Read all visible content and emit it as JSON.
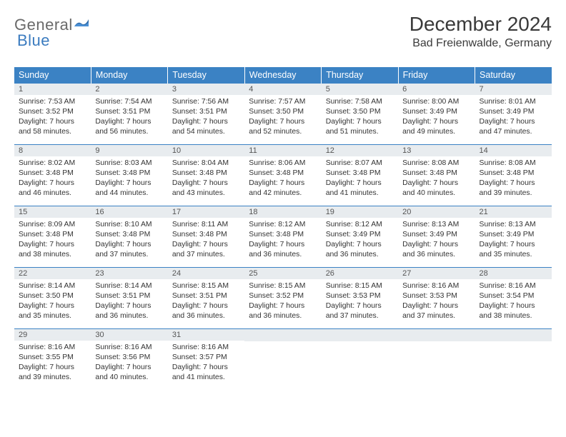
{
  "logo": {
    "part1": "General",
    "part2": "Blue"
  },
  "title": "December 2024",
  "location": "Bad Freienwalde, Germany",
  "colors": {
    "header_bg": "#3b82c4",
    "header_text": "#ffffff",
    "band_bg": "#e8ecef",
    "border": "#3b82c4",
    "logo_gray": "#6a6a6a",
    "logo_blue": "#3b7bbf"
  },
  "day_names": [
    "Sunday",
    "Monday",
    "Tuesday",
    "Wednesday",
    "Thursday",
    "Friday",
    "Saturday"
  ],
  "weeks": [
    [
      {
        "n": "1",
        "sr": "Sunrise: 7:53 AM",
        "ss": "Sunset: 3:52 PM",
        "dl1": "Daylight: 7 hours",
        "dl2": "and 58 minutes."
      },
      {
        "n": "2",
        "sr": "Sunrise: 7:54 AM",
        "ss": "Sunset: 3:51 PM",
        "dl1": "Daylight: 7 hours",
        "dl2": "and 56 minutes."
      },
      {
        "n": "3",
        "sr": "Sunrise: 7:56 AM",
        "ss": "Sunset: 3:51 PM",
        "dl1": "Daylight: 7 hours",
        "dl2": "and 54 minutes."
      },
      {
        "n": "4",
        "sr": "Sunrise: 7:57 AM",
        "ss": "Sunset: 3:50 PM",
        "dl1": "Daylight: 7 hours",
        "dl2": "and 52 minutes."
      },
      {
        "n": "5",
        "sr": "Sunrise: 7:58 AM",
        "ss": "Sunset: 3:50 PM",
        "dl1": "Daylight: 7 hours",
        "dl2": "and 51 minutes."
      },
      {
        "n": "6",
        "sr": "Sunrise: 8:00 AM",
        "ss": "Sunset: 3:49 PM",
        "dl1": "Daylight: 7 hours",
        "dl2": "and 49 minutes."
      },
      {
        "n": "7",
        "sr": "Sunrise: 8:01 AM",
        "ss": "Sunset: 3:49 PM",
        "dl1": "Daylight: 7 hours",
        "dl2": "and 47 minutes."
      }
    ],
    [
      {
        "n": "8",
        "sr": "Sunrise: 8:02 AM",
        "ss": "Sunset: 3:48 PM",
        "dl1": "Daylight: 7 hours",
        "dl2": "and 46 minutes."
      },
      {
        "n": "9",
        "sr": "Sunrise: 8:03 AM",
        "ss": "Sunset: 3:48 PM",
        "dl1": "Daylight: 7 hours",
        "dl2": "and 44 minutes."
      },
      {
        "n": "10",
        "sr": "Sunrise: 8:04 AM",
        "ss": "Sunset: 3:48 PM",
        "dl1": "Daylight: 7 hours",
        "dl2": "and 43 minutes."
      },
      {
        "n": "11",
        "sr": "Sunrise: 8:06 AM",
        "ss": "Sunset: 3:48 PM",
        "dl1": "Daylight: 7 hours",
        "dl2": "and 42 minutes."
      },
      {
        "n": "12",
        "sr": "Sunrise: 8:07 AM",
        "ss": "Sunset: 3:48 PM",
        "dl1": "Daylight: 7 hours",
        "dl2": "and 41 minutes."
      },
      {
        "n": "13",
        "sr": "Sunrise: 8:08 AM",
        "ss": "Sunset: 3:48 PM",
        "dl1": "Daylight: 7 hours",
        "dl2": "and 40 minutes."
      },
      {
        "n": "14",
        "sr": "Sunrise: 8:08 AM",
        "ss": "Sunset: 3:48 PM",
        "dl1": "Daylight: 7 hours",
        "dl2": "and 39 minutes."
      }
    ],
    [
      {
        "n": "15",
        "sr": "Sunrise: 8:09 AM",
        "ss": "Sunset: 3:48 PM",
        "dl1": "Daylight: 7 hours",
        "dl2": "and 38 minutes."
      },
      {
        "n": "16",
        "sr": "Sunrise: 8:10 AM",
        "ss": "Sunset: 3:48 PM",
        "dl1": "Daylight: 7 hours",
        "dl2": "and 37 minutes."
      },
      {
        "n": "17",
        "sr": "Sunrise: 8:11 AM",
        "ss": "Sunset: 3:48 PM",
        "dl1": "Daylight: 7 hours",
        "dl2": "and 37 minutes."
      },
      {
        "n": "18",
        "sr": "Sunrise: 8:12 AM",
        "ss": "Sunset: 3:48 PM",
        "dl1": "Daylight: 7 hours",
        "dl2": "and 36 minutes."
      },
      {
        "n": "19",
        "sr": "Sunrise: 8:12 AM",
        "ss": "Sunset: 3:49 PM",
        "dl1": "Daylight: 7 hours",
        "dl2": "and 36 minutes."
      },
      {
        "n": "20",
        "sr": "Sunrise: 8:13 AM",
        "ss": "Sunset: 3:49 PM",
        "dl1": "Daylight: 7 hours",
        "dl2": "and 36 minutes."
      },
      {
        "n": "21",
        "sr": "Sunrise: 8:13 AM",
        "ss": "Sunset: 3:49 PM",
        "dl1": "Daylight: 7 hours",
        "dl2": "and 35 minutes."
      }
    ],
    [
      {
        "n": "22",
        "sr": "Sunrise: 8:14 AM",
        "ss": "Sunset: 3:50 PM",
        "dl1": "Daylight: 7 hours",
        "dl2": "and 35 minutes."
      },
      {
        "n": "23",
        "sr": "Sunrise: 8:14 AM",
        "ss": "Sunset: 3:51 PM",
        "dl1": "Daylight: 7 hours",
        "dl2": "and 36 minutes."
      },
      {
        "n": "24",
        "sr": "Sunrise: 8:15 AM",
        "ss": "Sunset: 3:51 PM",
        "dl1": "Daylight: 7 hours",
        "dl2": "and 36 minutes."
      },
      {
        "n": "25",
        "sr": "Sunrise: 8:15 AM",
        "ss": "Sunset: 3:52 PM",
        "dl1": "Daylight: 7 hours",
        "dl2": "and 36 minutes."
      },
      {
        "n": "26",
        "sr": "Sunrise: 8:15 AM",
        "ss": "Sunset: 3:53 PM",
        "dl1": "Daylight: 7 hours",
        "dl2": "and 37 minutes."
      },
      {
        "n": "27",
        "sr": "Sunrise: 8:16 AM",
        "ss": "Sunset: 3:53 PM",
        "dl1": "Daylight: 7 hours",
        "dl2": "and 37 minutes."
      },
      {
        "n": "28",
        "sr": "Sunrise: 8:16 AM",
        "ss": "Sunset: 3:54 PM",
        "dl1": "Daylight: 7 hours",
        "dl2": "and 38 minutes."
      }
    ],
    [
      {
        "n": "29",
        "sr": "Sunrise: 8:16 AM",
        "ss": "Sunset: 3:55 PM",
        "dl1": "Daylight: 7 hours",
        "dl2": "and 39 minutes."
      },
      {
        "n": "30",
        "sr": "Sunrise: 8:16 AM",
        "ss": "Sunset: 3:56 PM",
        "dl1": "Daylight: 7 hours",
        "dl2": "and 40 minutes."
      },
      {
        "n": "31",
        "sr": "Sunrise: 8:16 AM",
        "ss": "Sunset: 3:57 PM",
        "dl1": "Daylight: 7 hours",
        "dl2": "and 41 minutes."
      },
      null,
      null,
      null,
      null
    ]
  ]
}
